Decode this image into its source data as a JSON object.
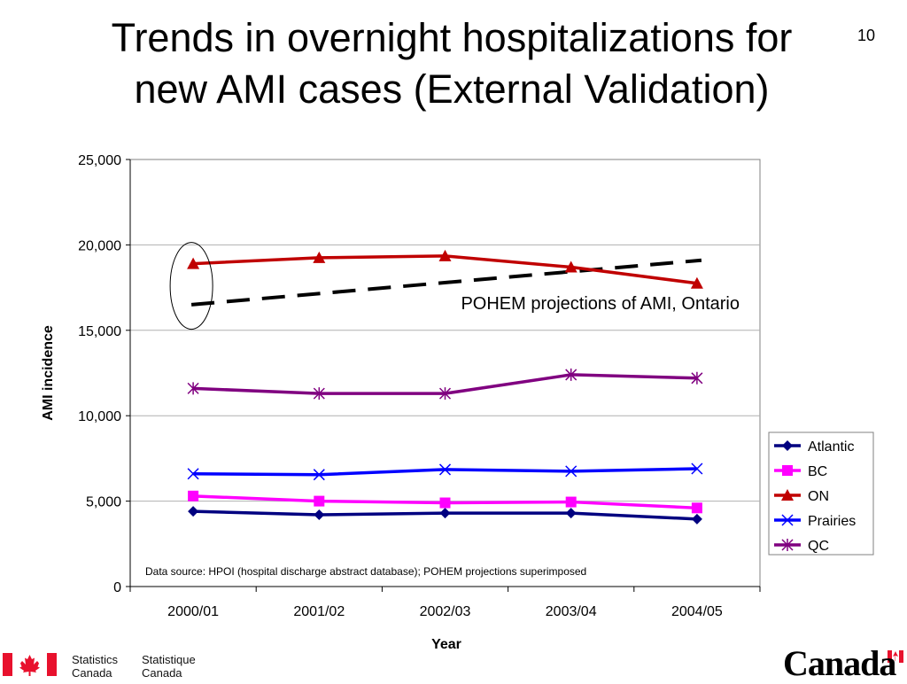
{
  "slide": {
    "title_line1": "Trends in overnight hospitalizations for",
    "title_line2": "new AMI cases (External Validation)",
    "number": "10"
  },
  "chart_data": {
    "type": "line",
    "categories": [
      "2000/01",
      "2001/02",
      "2002/03",
      "2003/04",
      "2004/05"
    ],
    "xlabel": "Year",
    "ylabel": "AMI incidence",
    "ylim": [
      0,
      25000
    ],
    "yticks": [
      0,
      5000,
      10000,
      15000,
      20000,
      25000
    ],
    "ytick_labels": [
      "0",
      "5,000",
      "10,000",
      "15,000",
      "20,000",
      "25,000"
    ],
    "grid": "horizontal",
    "legend_position": "right",
    "series": [
      {
        "name": "Atlantic",
        "values": [
          4400,
          4200,
          4300,
          4300,
          3950
        ],
        "color": "#000080",
        "marker": "diamond"
      },
      {
        "name": "BC",
        "values": [
          5300,
          5000,
          4900,
          4950,
          4600
        ],
        "color": "#ff00ff",
        "marker": "square"
      },
      {
        "name": "ON",
        "values": [
          18900,
          19250,
          19350,
          18700,
          17750
        ],
        "color": "#c00000",
        "marker": "triangle"
      },
      {
        "name": "Prairies",
        "values": [
          6600,
          6550,
          6850,
          6750,
          6900
        ],
        "color": "#0000ff",
        "marker": "x"
      },
      {
        "name": "QC",
        "values": [
          11600,
          11300,
          11300,
          12400,
          12200
        ],
        "color": "#800080",
        "marker": "star"
      }
    ],
    "projection": {
      "label": "POHEM projections of AMI, Ontario",
      "x_from": "2000/01",
      "x_to": "2004/05",
      "y_from": 16500,
      "y_to": 19100,
      "color": "#000000",
      "style": "dashed"
    },
    "highlight": {
      "category": "2000/01",
      "series": "ON",
      "shape": "ellipse"
    },
    "annotation": "Data source: HPOI (hospital discharge abstract database); POHEM projections superimposed"
  },
  "footer": {
    "flag_color": "#e8112d",
    "agency_en_line1": "Statistics",
    "agency_en_line2": "Canada",
    "agency_fr_line1": "Statistique",
    "agency_fr_line2": "Canada",
    "wordmark": "Canada"
  }
}
